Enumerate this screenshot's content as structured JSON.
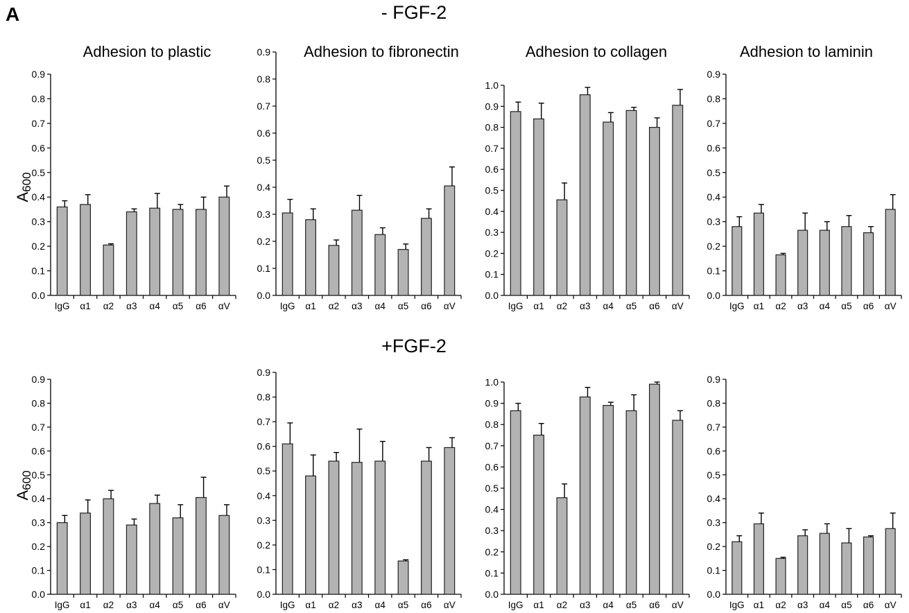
{
  "panel_label": "A",
  "row_titles": [
    "- FGF-2",
    "+FGF-2"
  ],
  "ylabel": {
    "main": "A",
    "sub": "600"
  },
  "style": {
    "bar_fill": "#b3b3b3",
    "bar_stroke": "#222222",
    "axis": "#000000"
  },
  "chart_data": [
    {
      "type": "bar",
      "title": "Adhesion to plastic",
      "ylabel": "A600",
      "ylim": [
        0,
        0.9
      ],
      "yticks": [
        "0.0",
        "0.1",
        "0.2",
        "0.3",
        "0.4",
        "0.5",
        "0.6",
        "0.7",
        "0.8",
        "0.9"
      ],
      "categories": [
        "IgG",
        "α1",
        "α2",
        "α3",
        "α4",
        "α5",
        "α6",
        "αV"
      ],
      "values": [
        0.36,
        0.37,
        0.205,
        0.34,
        0.355,
        0.35,
        0.35,
        0.4
      ],
      "errors": [
        0.025,
        0.04,
        0.005,
        0.012,
        0.06,
        0.02,
        0.05,
        0.045
      ]
    },
    {
      "type": "bar",
      "title": "Adhesion to fibronectin",
      "ylim": [
        0,
        0.9
      ],
      "yticks": [
        "0.0",
        "0.1",
        "0.2",
        "0.3",
        "0.4",
        "0.5",
        "0.6",
        "0.7",
        "0.8",
        "0.9"
      ],
      "categories": [
        "IgG",
        "α1",
        "α2",
        "α3",
        "α4",
        "α5",
        "α6",
        "αV"
      ],
      "values": [
        0.305,
        0.28,
        0.185,
        0.315,
        0.225,
        0.17,
        0.285,
        0.405
      ],
      "errors": [
        0.05,
        0.04,
        0.02,
        0.055,
        0.025,
        0.02,
        0.035,
        0.07
      ]
    },
    {
      "type": "bar",
      "title": "Adhesion to collagen",
      "ylim": [
        0,
        1.0
      ],
      "yticks": [
        "0.0",
        "0.1",
        "0.2",
        "0.3",
        "0.4",
        "0.5",
        "0.6",
        "0.7",
        "0.8",
        "0.9",
        "1.0"
      ],
      "categories": [
        "IgG",
        "α1",
        "α2",
        "α3",
        "α4",
        "α5",
        "α6",
        "αV"
      ],
      "values": [
        0.875,
        0.84,
        0.455,
        0.955,
        0.825,
        0.88,
        0.8,
        0.905
      ],
      "errors": [
        0.045,
        0.075,
        0.08,
        0.035,
        0.045,
        0.015,
        0.045,
        0.075
      ]
    },
    {
      "type": "bar",
      "title": "Adhesion to laminin",
      "ylim": [
        0,
        0.9
      ],
      "yticks": [
        "0.0",
        "0.1",
        "0.2",
        "0.3",
        "0.4",
        "0.5",
        "0.6",
        "0.7",
        "0.8",
        "0.9"
      ],
      "categories": [
        "IgG",
        "α1",
        "α2",
        "α3",
        "α4",
        "α5",
        "α6",
        "αV"
      ],
      "values": [
        0.28,
        0.335,
        0.165,
        0.265,
        0.265,
        0.28,
        0.255,
        0.35
      ],
      "errors": [
        0.04,
        0.035,
        0.006,
        0.07,
        0.035,
        0.045,
        0.025,
        0.06
      ]
    },
    {
      "type": "bar",
      "title": "",
      "ylabel": "A600",
      "ylim": [
        0,
        0.9
      ],
      "yticks": [
        "0.0",
        "0.1",
        "0.2",
        "0.3",
        "0.4",
        "0.5",
        "0.6",
        "0.7",
        "0.8",
        "0.9"
      ],
      "categories": [
        "IgG",
        "α1",
        "α2",
        "α3",
        "α4",
        "α5",
        "α6",
        "αV"
      ],
      "values": [
        0.3,
        0.34,
        0.4,
        0.29,
        0.38,
        0.32,
        0.405,
        0.33
      ],
      "errors": [
        0.03,
        0.055,
        0.035,
        0.025,
        0.035,
        0.055,
        0.085,
        0.045
      ]
    },
    {
      "type": "bar",
      "title": "",
      "ylim": [
        0,
        0.9
      ],
      "yticks": [
        "0.0",
        "0.1",
        "0.2",
        "0.3",
        "0.4",
        "0.5",
        "0.6",
        "0.7",
        "0.8",
        "0.9"
      ],
      "categories": [
        "IgG",
        "α1",
        "α2",
        "α3",
        "α4",
        "α5",
        "α6",
        "αV"
      ],
      "values": [
        0.61,
        0.48,
        0.54,
        0.535,
        0.54,
        0.135,
        0.54,
        0.595
      ],
      "errors": [
        0.085,
        0.085,
        0.035,
        0.135,
        0.08,
        0.005,
        0.055,
        0.04
      ]
    },
    {
      "type": "bar",
      "title": "",
      "ylim": [
        0,
        1.0
      ],
      "yticks": [
        "0.0",
        "0.1",
        "0.2",
        "0.3",
        "0.4",
        "0.5",
        "0.6",
        "0.7",
        "0.8",
        "0.9",
        "1.0"
      ],
      "categories": [
        "IgG",
        "α1",
        "α2",
        "α3",
        "α4",
        "α5",
        "α6",
        "αV"
      ],
      "values": [
        0.865,
        0.75,
        0.455,
        0.93,
        0.89,
        0.865,
        0.99,
        0.82
      ],
      "errors": [
        0.035,
        0.055,
        0.065,
        0.045,
        0.015,
        0.075,
        0.01,
        0.045
      ]
    },
    {
      "type": "bar",
      "title": "",
      "ylim": [
        0,
        0.9
      ],
      "yticks": [
        "0.0",
        "0.1",
        "0.2",
        "0.3",
        "0.4",
        "0.5",
        "0.6",
        "0.7",
        "0.8",
        "0.9"
      ],
      "categories": [
        "IgG",
        "α1",
        "α2",
        "α3",
        "α4",
        "α5",
        "α6",
        "αV"
      ],
      "values": [
        0.22,
        0.295,
        0.15,
        0.245,
        0.255,
        0.215,
        0.24,
        0.275
      ],
      "errors": [
        0.025,
        0.045,
        0.005,
        0.025,
        0.04,
        0.06,
        0.005,
        0.065
      ]
    }
  ]
}
